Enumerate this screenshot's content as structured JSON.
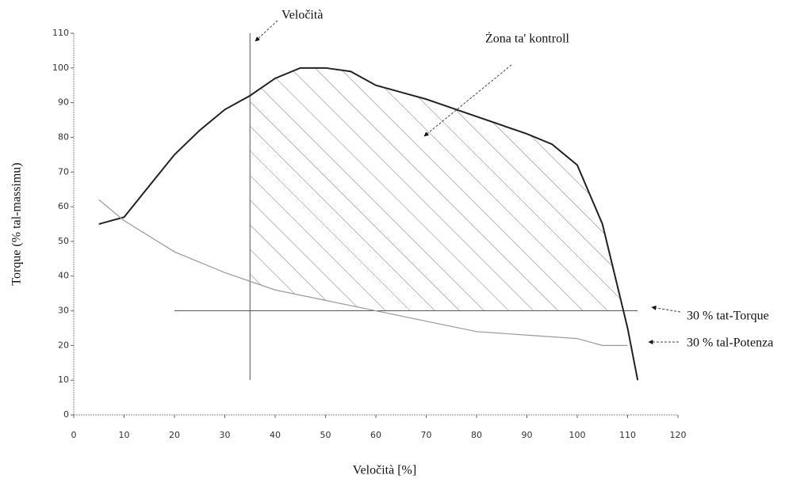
{
  "chart_data": {
    "type": "line",
    "xlabel": "Veločità [%]",
    "ylabel": "Torque (% tal-massimu)",
    "xlim": [
      0,
      120
    ],
    "xticks": [
      0,
      10,
      20,
      30,
      40,
      50,
      60,
      70,
      80,
      90,
      100,
      110,
      120
    ],
    "ylim": [
      0,
      110
    ],
    "yticks": [
      0,
      10,
      20,
      30,
      40,
      50,
      60,
      70,
      80,
      90,
      100,
      110
    ],
    "series": [
      {
        "color": "#222222",
        "x": [
          5,
          10,
          15,
          20,
          25,
          30,
          35,
          40,
          45,
          50,
          55,
          60,
          70,
          80,
          90,
          95,
          100,
          105,
          110,
          112
        ],
        "values": [
          55,
          57,
          66,
          75,
          82,
          88,
          92,
          97,
          100,
          100,
          99,
          95,
          91,
          86,
          81,
          78,
          72,
          55,
          25,
          10
        ]
      },
      {
        "color": "#9a9a9a",
        "x": [
          5,
          10,
          20,
          30,
          40,
          50,
          60,
          70,
          80,
          90,
          100,
          105,
          110
        ],
        "values": [
          62,
          56,
          47,
          41,
          36,
          33,
          30,
          27,
          24,
          23,
          22,
          20,
          20
        ]
      }
    ],
    "hline": {
      "y": 30,
      "x_range": [
        20,
        112
      ]
    },
    "vline": {
      "x": 35,
      "y_range": [
        10,
        110
      ]
    },
    "annotations": [
      {
        "text": "Veločità"
      },
      {
        "text": "Żona ta' kontroll"
      },
      {
        "text": "30 % tat-Torque"
      },
      {
        "text": "30 % tal-Potenza"
      }
    ]
  }
}
